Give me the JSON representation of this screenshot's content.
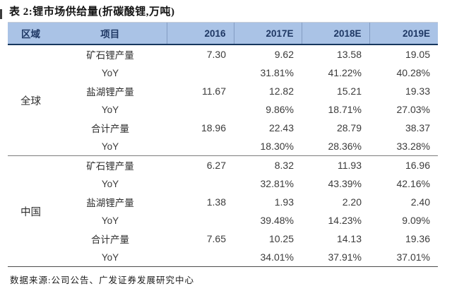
{
  "title": "表 2:锂市场供给量(折碳酸锂,万吨)",
  "source": "数据来源:公司公告、广发证券发展研究中心",
  "colors": {
    "header_bg": "#aac3e6",
    "header_text": "#1f3864",
    "header_border": "#17375e",
    "body_text": "#3b3b3b",
    "rule_gray": "#7c7c7c"
  },
  "table": {
    "headers": {
      "region": "区域",
      "item": "项目",
      "y2016": "2016",
      "y2017e": "2017E",
      "y2018e": "2018E",
      "y2019e": "2019E"
    },
    "sections": [
      {
        "region": "全球",
        "rows": [
          {
            "item": "矿石锂产量",
            "values": [
              "7.30",
              "9.62",
              "13.58",
              "19.05"
            ]
          },
          {
            "item": "YoY",
            "values": [
              "",
              "31.81%",
              "41.22%",
              "40.28%"
            ]
          },
          {
            "item": "盐湖锂产量",
            "values": [
              "11.67",
              "12.82",
              "15.21",
              "19.33"
            ]
          },
          {
            "item": "YoY",
            "values": [
              "",
              "9.86%",
              "18.71%",
              "27.03%"
            ]
          },
          {
            "item": "合计产量",
            "values": [
              "18.96",
              "22.43",
              "28.79",
              "38.37"
            ]
          },
          {
            "item": "YoY",
            "values": [
              "",
              "18.30%",
              "28.36%",
              "33.28%"
            ]
          }
        ]
      },
      {
        "region": "中国",
        "rows": [
          {
            "item": "矿石锂产量",
            "values": [
              "6.27",
              "8.32",
              "11.93",
              "16.96"
            ]
          },
          {
            "item": "YoY",
            "values": [
              "",
              "32.81%",
              "43.39%",
              "42.16%"
            ]
          },
          {
            "item": "盐湖锂产量",
            "values": [
              "1.38",
              "1.93",
              "2.20",
              "2.40"
            ]
          },
          {
            "item": "YoY",
            "values": [
              "",
              "39.48%",
              "14.23%",
              "9.09%"
            ]
          },
          {
            "item": "合计产量",
            "values": [
              "7.65",
              "10.25",
              "14.13",
              "19.36"
            ]
          },
          {
            "item": "YoY",
            "values": [
              "",
              "34.01%",
              "37.91%",
              "37.01%"
            ]
          }
        ]
      }
    ]
  }
}
